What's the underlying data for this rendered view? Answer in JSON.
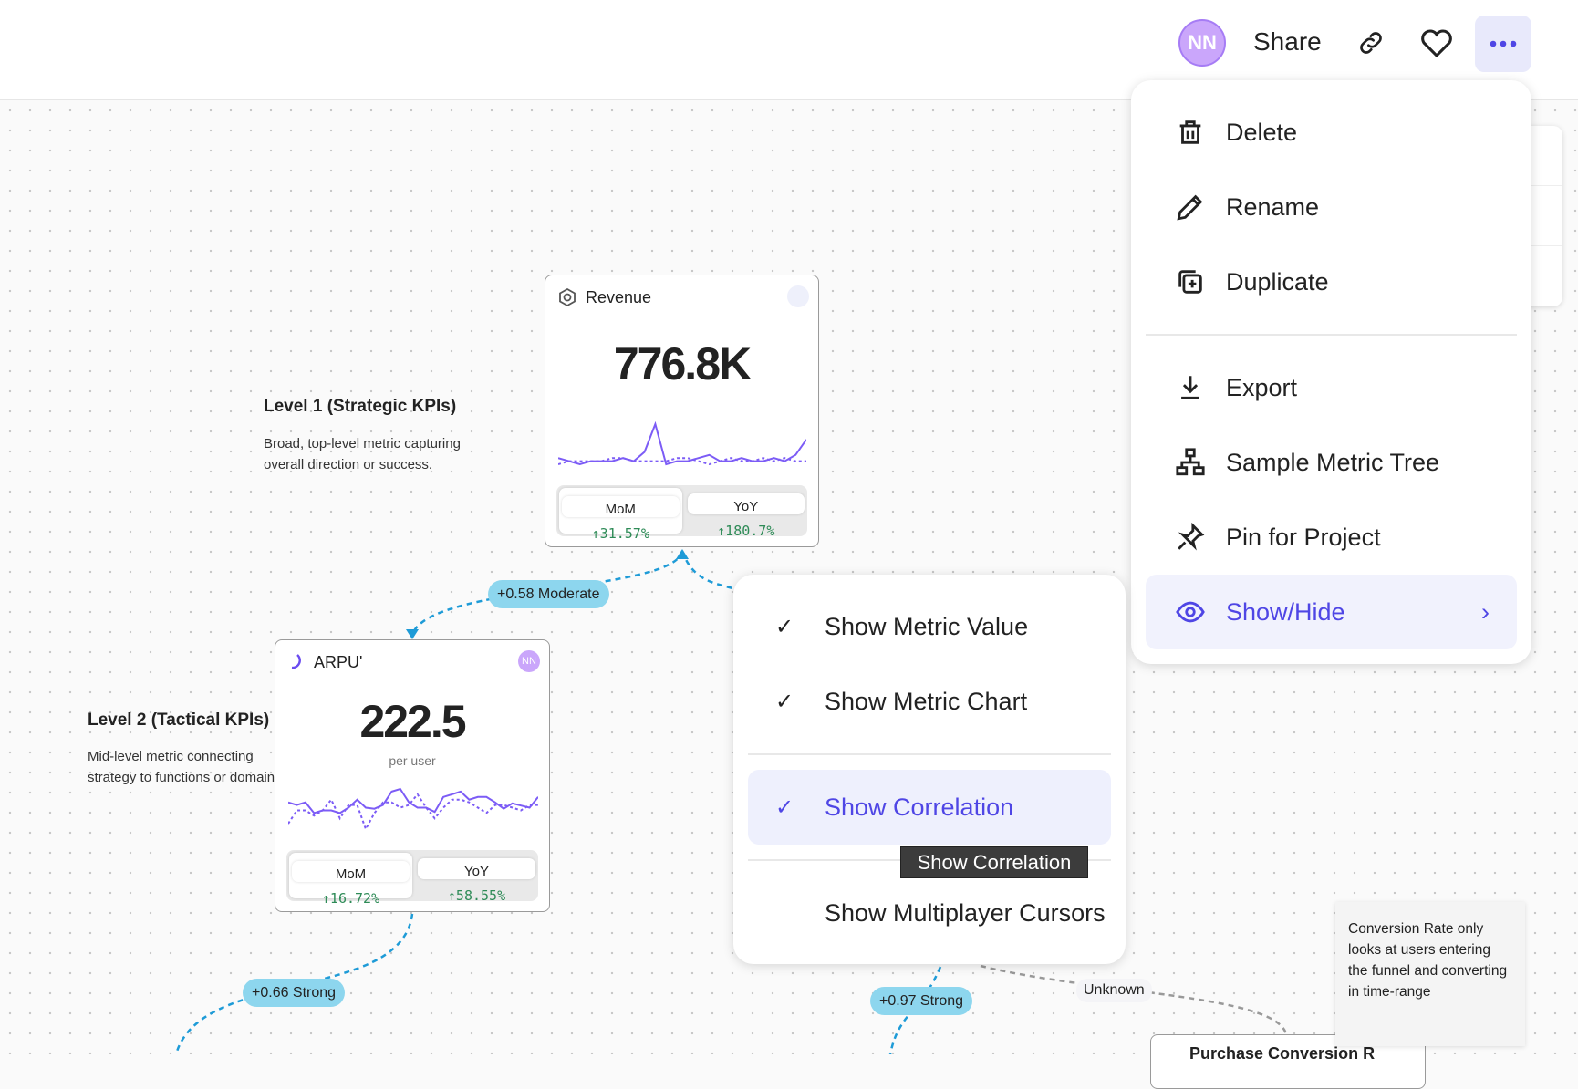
{
  "header": {
    "avatar_initials": "NN",
    "share_label": "Share",
    "icons": [
      "link-icon",
      "heart-icon",
      "more-icon"
    ]
  },
  "menu": {
    "items": [
      {
        "label": "Delete",
        "icon": "trash-icon"
      },
      {
        "label": "Rename",
        "icon": "pencil-icon"
      },
      {
        "label": "Duplicate",
        "icon": "duplicate-icon"
      },
      {
        "label": "Export",
        "icon": "download-icon"
      },
      {
        "label": "Sample Metric Tree",
        "icon": "tree-icon"
      },
      {
        "label": "Pin for Project",
        "icon": "pin-icon"
      },
      {
        "label": "Show/Hide",
        "icon": "eye-icon",
        "active": true
      }
    ]
  },
  "submenu": {
    "items": [
      {
        "label": "Show Metric Value",
        "checked": true
      },
      {
        "label": "Show Metric Chart",
        "checked": true
      },
      {
        "label": "Show Correlation",
        "checked": true
      },
      {
        "label": "Show Multiplayer Cursors",
        "checked": false
      }
    ],
    "tooltip": "Show Correlation"
  },
  "levels": [
    {
      "title": "Level 1 (Strategic KPIs)",
      "desc_line1": "Broad, top-level metric capturing",
      "desc_line2": "overall direction or success."
    },
    {
      "title": "Level 2 (Tactical KPIs)",
      "desc_line1": "Mid-level metric connecting",
      "desc_line2": "strategy to functions or domains."
    }
  ],
  "cards": {
    "revenue": {
      "title": "Revenue",
      "value": "776.8K",
      "mom_label": "MoM",
      "mom": "↑31.57%",
      "yoy_label": "YoY",
      "yoy": "↑180.7%",
      "series": [
        3,
        2,
        1,
        2,
        2,
        2,
        3,
        2,
        5,
        14,
        1,
        2,
        2,
        3,
        4,
        2,
        2,
        3,
        2,
        2,
        3,
        2,
        4,
        9
      ],
      "compare": [
        1,
        2,
        2,
        2,
        2,
        3,
        3,
        2,
        2,
        2,
        2,
        3,
        3,
        2,
        1,
        2,
        3,
        2,
        2,
        3,
        2,
        3,
        2,
        2
      ]
    },
    "arpu": {
      "title": "ARPU'",
      "avatar": "NN",
      "value": "222.5",
      "unit": "per user",
      "mom_label": "MoM",
      "mom": "↑16.72%",
      "yoy_label": "YoY",
      "yoy": "↑58.55%",
      "series": [
        6,
        5.5,
        6,
        4,
        4.5,
        4.5,
        4,
        5,
        6.5,
        5,
        4.8,
        5.5,
        8,
        8.5,
        6,
        5,
        5,
        4.2,
        7,
        7.5,
        8,
        6.5,
        7,
        7,
        6,
        4.8,
        5.8,
        5.4,
        5,
        7
      ],
      "compare": [
        2,
        4.5,
        4.5,
        3.5,
        4.5,
        6.5,
        3,
        5.5,
        5.5,
        1,
        4,
        6,
        6,
        5,
        5.5,
        7.5,
        5,
        3,
        5,
        6.5,
        6.5,
        6,
        5,
        4,
        5.5,
        5.5,
        5,
        4.5,
        5.5,
        5.5
      ]
    },
    "purchase": {
      "title": "Purchase Conversion R"
    }
  },
  "correlations": [
    "+0.58 Moderate",
    "+0.66 Strong",
    "+0.97 Strong",
    "Unknown"
  ],
  "note": "Conversion Rate only looks at users entering the funnel and converting in time-range",
  "colors": {
    "accent": "#4f46e5",
    "sparkline": "#7c5cf6",
    "edge": "#1e9bd7",
    "badge": "#8dd6ee",
    "positive": "#2e8b57"
  }
}
